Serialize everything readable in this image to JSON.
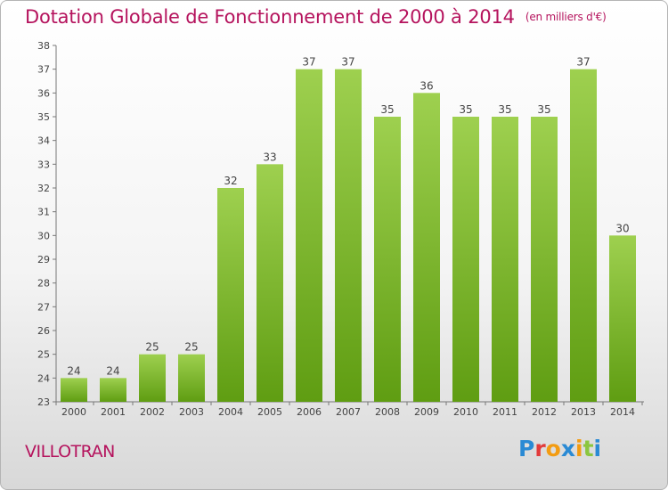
{
  "header": {
    "title": "Dotation Globale de Fonctionnement de 2000 à 2014",
    "unit": "(en milliers d'€)"
  },
  "footer": {
    "commune": "VILLOTRAN",
    "logo": {
      "text": "Proxiti",
      "colors": [
        "#2a8ad4",
        "#e23b3b",
        "#f39c12",
        "#2a8ad4",
        "#f39c12",
        "#8cc63f",
        "#2a8ad4"
      ]
    }
  },
  "colors": {
    "bar_top": "#9ed04f",
    "bar_bottom": "#5f9d12",
    "title": "#b5135d"
  },
  "chart_data": {
    "type": "bar",
    "title": "Dotation Globale de Fonctionnement de 2000 à 2014",
    "subtitle": "(en milliers d'€)",
    "categories": [
      "2000",
      "2001",
      "2002",
      "2003",
      "2004",
      "2005",
      "2006",
      "2007",
      "2008",
      "2009",
      "2010",
      "2011",
      "2012",
      "2013",
      "2014"
    ],
    "values": [
      24,
      24,
      25,
      25,
      32,
      33,
      37,
      37,
      35,
      36,
      35,
      35,
      35,
      37,
      30
    ],
    "ylim": [
      23,
      38
    ],
    "yticks": [
      23,
      24,
      25,
      26,
      27,
      28,
      29,
      30,
      31,
      32,
      33,
      34,
      35,
      36,
      37,
      38
    ],
    "grid": false,
    "data_labels": true
  }
}
